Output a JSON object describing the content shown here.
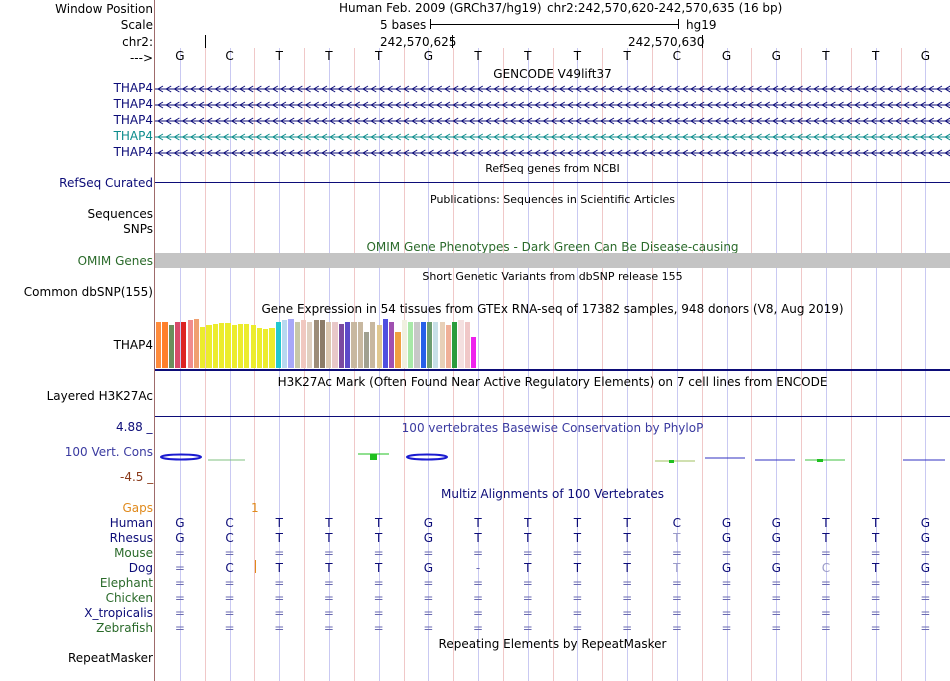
{
  "header": {
    "labels": {
      "window_position": "Window Position",
      "scale": "Scale",
      "chr": "chr2:",
      "arrow": "--->"
    },
    "assembly": "Human Feb. 2009 (GRCh37/hg19)",
    "position": "chr2:242,570,620-242,570,635 (16 bp)",
    "scale_text": "5 bases",
    "db": "hg19",
    "coord1": "242,570,625",
    "coord2": "242,570,630"
  },
  "bases": [
    "G",
    "C",
    "T",
    "T",
    "T",
    "G",
    "T",
    "T",
    "T",
    "T",
    "C",
    "G",
    "G",
    "T",
    "T",
    "G"
  ],
  "gencode": {
    "title": "GENCODE V49lift37",
    "tracks": [
      {
        "name": "THAP4",
        "color": "#0c0c78"
      },
      {
        "name": "THAP4",
        "color": "#0c0c78"
      },
      {
        "name": "THAP4",
        "color": "#0c0c78"
      },
      {
        "name": "THAP4",
        "color": "#0c8c8c"
      },
      {
        "name": "THAP4",
        "color": "#0c0c78"
      }
    ]
  },
  "refseq": {
    "title": "RefSeq genes from NCBI",
    "label": "RefSeq Curated"
  },
  "publications": {
    "title": "Publications: Sequences in Scientific Articles",
    "label1": "Sequences",
    "label2": "SNPs"
  },
  "omim": {
    "title": "OMIM Gene Phenotypes - Dark Green Can Be Disease-causing",
    "label": "OMIM Genes"
  },
  "dbsnp": {
    "title": "Short Genetic Variants from dbSNP release 155",
    "label": "Common dbSNP(155)"
  },
  "gtex": {
    "title": "Gene Expression in 54 tissues from GTEx RNA-seq of 17382 samples, 948 donors (V8, Aug 2019)",
    "label": "THAP4",
    "bars": [
      {
        "color": "#ff8c3c",
        "value": 0.92
      },
      {
        "color": "#ff7f2a",
        "value": 0.92
      },
      {
        "color": "#6b8e5c",
        "value": 0.85
      },
      {
        "color": "#d84a6a",
        "value": 0.92
      },
      {
        "color": "#dd2222",
        "value": 0.92
      },
      {
        "color": "#f08c8c",
        "value": 0.95
      },
      {
        "color": "#f0a070",
        "value": 0.98
      },
      {
        "color": "#ecec2c",
        "value": 0.82
      },
      {
        "color": "#ecec2c",
        "value": 0.86
      },
      {
        "color": "#ecec2c",
        "value": 0.88
      },
      {
        "color": "#ecec2c",
        "value": 0.9
      },
      {
        "color": "#ecec2c",
        "value": 0.9
      },
      {
        "color": "#ecec2c",
        "value": 0.86
      },
      {
        "color": "#ecec2c",
        "value": 0.88
      },
      {
        "color": "#ecec2c",
        "value": 0.88
      },
      {
        "color": "#ecec2c",
        "value": 0.86
      },
      {
        "color": "#ecec2c",
        "value": 0.8
      },
      {
        "color": "#ecec2c",
        "value": 0.78
      },
      {
        "color": "#ecec2c",
        "value": 0.8
      },
      {
        "color": "#22c8d0",
        "value": 0.92
      },
      {
        "color": "#b8d8f0",
        "value": 0.95
      },
      {
        "color": "#a8a8f8",
        "value": 0.98
      },
      {
        "color": "#c8c8a8",
        "value": 0.92
      },
      {
        "color": "#f0c8c0",
        "value": 0.95
      },
      {
        "color": "#e0d0c0",
        "value": 0.92
      },
      {
        "color": "#9c8c78",
        "value": 0.95
      },
      {
        "color": "#8c7c68",
        "value": 0.95
      },
      {
        "color": "#dcc8b0",
        "value": 0.92
      },
      {
        "color": "#e8c8c8",
        "value": 0.92
      },
      {
        "color": "#7a4aa0",
        "value": 0.88
      },
      {
        "color": "#5c4ac8",
        "value": 0.92
      },
      {
        "color": "#c8b8a0",
        "value": 0.92
      },
      {
        "color": "#c8b8a0",
        "value": 0.92
      },
      {
        "color": "#a0a090",
        "value": 0.72
      },
      {
        "color": "#c8b8a0",
        "value": 0.92
      },
      {
        "color": "#e0c890",
        "value": 0.86
      },
      {
        "color": "#5050e0",
        "value": 0.97
      },
      {
        "color": "#a050b0",
        "value": 0.92
      },
      {
        "color": "#f0a040",
        "value": 0.72
      },
      {
        "color": "#f0f0e0",
        "value": 0.96
      },
      {
        "color": "#a8e8a8",
        "value": 0.92
      },
      {
        "color": "#c8c8c8",
        "value": 0.92
      },
      {
        "color": "#2860e8",
        "value": 0.92
      },
      {
        "color": "#6c9c70",
        "value": 0.92
      },
      {
        "color": "#c8e0e8",
        "value": 0.92
      },
      {
        "color": "#e8d0b8",
        "value": 0.92
      },
      {
        "color": "#f0b098",
        "value": 0.86
      },
      {
        "color": "#2a9c3c",
        "value": 0.92
      },
      {
        "color": "#f4e0e0",
        "value": 0.96
      },
      {
        "color": "#f0c8c8",
        "value": 0.92
      },
      {
        "color": "#ee22ee",
        "value": 0.62
      }
    ]
  },
  "h3k27ac": {
    "title": "H3K27Ac Mark (Often Found Near Active Regulatory Elements) on 7 cell lines from ENCODE",
    "label": "Layered H3K27Ac"
  },
  "conservation": {
    "title": "100 vertebrates Basewise Conservation by PhyloP",
    "label": "100 Vert. Cons",
    "max": "4.88 _",
    "min": "-4.5 _"
  },
  "multiz": {
    "title": "Multiz Alignments of 100 Vertebrates",
    "gaps_label": "Gaps",
    "gaps_value": "1",
    "species": [
      {
        "name": "Human",
        "color": "#0c0c78",
        "bases": [
          "G",
          "C",
          "T",
          "T",
          "T",
          "G",
          "T",
          "T",
          "T",
          "T",
          "C",
          "G",
          "G",
          "T",
          "T",
          "G"
        ]
      },
      {
        "name": "Rhesus",
        "color": "#0c0c78",
        "bases": [
          "G",
          "C",
          "T",
          "T",
          "T",
          "G",
          "T",
          "T",
          "T",
          "T",
          "T",
          "G",
          "G",
          "T",
          "T",
          "G"
        ]
      },
      {
        "name": "Mouse",
        "color": "#2a6a2a",
        "bases": [
          "=",
          "=",
          "=",
          "=",
          "=",
          "=",
          "=",
          "=",
          "=",
          "=",
          "=",
          "=",
          "=",
          "=",
          "=",
          "="
        ]
      },
      {
        "name": "Dog",
        "color": "#0c0c78",
        "bases": [
          "=",
          "C",
          "T",
          "T",
          "T",
          "G",
          "-",
          "T",
          "T",
          "T",
          "T",
          "G",
          "G",
          "C",
          "T",
          "G"
        ]
      },
      {
        "name": "Elephant",
        "color": "#2a6a2a",
        "bases": [
          "=",
          "=",
          "=",
          "=",
          "=",
          "=",
          "=",
          "=",
          "=",
          "=",
          "=",
          "=",
          "=",
          "=",
          "=",
          "="
        ]
      },
      {
        "name": "Chicken",
        "color": "#2a6a2a",
        "bases": [
          "=",
          "=",
          "=",
          "=",
          "=",
          "=",
          "=",
          "=",
          "=",
          "=",
          "=",
          "=",
          "=",
          "=",
          "=",
          "="
        ]
      },
      {
        "name": "X_tropicalis",
        "color": "#0c0c78",
        "bases": [
          "=",
          "=",
          "=",
          "=",
          "=",
          "=",
          "=",
          "=",
          "=",
          "=",
          "=",
          "=",
          "=",
          "=",
          "=",
          "="
        ]
      },
      {
        "name": "Zebrafish",
        "color": "#2a6a2a",
        "bases": [
          "=",
          "=",
          "=",
          "=",
          "=",
          "=",
          "=",
          "=",
          "=",
          "=",
          "=",
          "=",
          "=",
          "=",
          "=",
          "="
        ]
      }
    ]
  },
  "repeatmasker": {
    "title": "Repeating Elements by RepeatMasker",
    "label": "RepeatMasker"
  },
  "colors": {
    "navy": "#0c0c78",
    "omim_green": "#2a6a2a",
    "gaps_orange": "#e08a1c",
    "cons_neg": "#8a3a1a",
    "separator": "#0c0c78"
  }
}
